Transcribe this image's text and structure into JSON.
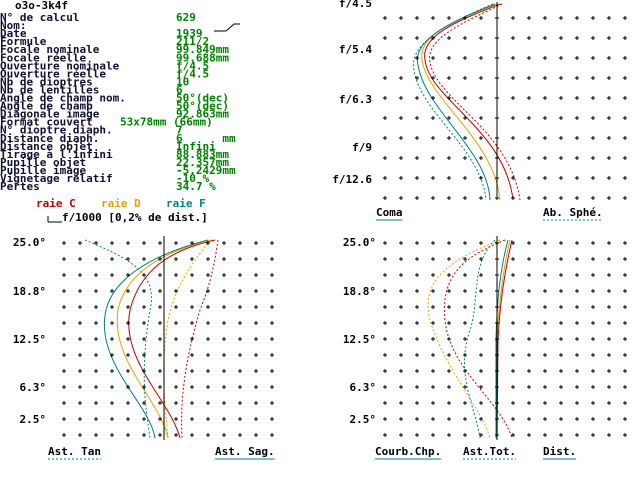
{
  "title": "o3o-3k4f",
  "params_a": [
    {
      "label": "N° de calcul",
      "value": "629"
    },
    {
      "label": "Nom:"
    },
    {
      "label": "Date",
      "value": "1939"
    },
    {
      "label": "Formule",
      "value": "211/2"
    },
    {
      "label": "Focale nominale",
      "value": "99.849mm"
    },
    {
      "label": "Focale réelle",
      "value": "99.688mm"
    },
    {
      "label": "Ouverture nominale",
      "value": "f/4.5"
    },
    {
      "label": "Ouverture réelle",
      "value": "f/4.5"
    },
    {
      "label": "Nb de dioptres",
      "value": "10"
    },
    {
      "label": "Nb de lentilles",
      "value": "6"
    },
    {
      "label": "Angle de champ nom.",
      "value": "50°(dec)"
    },
    {
      "label": "Angle de champ",
      "value": "50°(dec)"
    },
    {
      "label": "Diagonale image",
      "value": "92.863mm"
    }
  ],
  "format": {
    "label": "Format couvert",
    "value": "53x78mm (66mm)"
  },
  "params_b": [
    {
      "label": "N° dioptre diaph.",
      "value": "7"
    },
    {
      "label": "Distance diaph.",
      "value": "6      mm"
    },
    {
      "label": "Distance objet",
      "value": "Infini"
    },
    {
      "label": "Tirage à l'infini",
      "value": "88.883mm"
    },
    {
      "label": "Pupille objet",
      "value": "22.357mm"
    },
    {
      "label": "Pupille image",
      "value": "-5.2429mm"
    },
    {
      "label": "Vignetage relatif",
      "value": "-10 %"
    },
    {
      "label": "Pertes",
      "value": "34.7 %"
    }
  ],
  "legend": [
    "raie C",
    "raie D",
    "raie F"
  ],
  "scale_note": "f/1000 [0,2% de dist.]",
  "plots": [
    {
      "y_labels": [
        "f/4.5",
        "f/5.4",
        "f/6.3",
        "f/9",
        "f/12.6"
      ],
      "x_labels": [
        "Coma",
        "Ab. Sphé."
      ]
    },
    {
      "y_labels": [
        "25.0°",
        "18.8°",
        "12.5°",
        "6.3°",
        "2.5°"
      ],
      "x_labels": [
        "Ast. Tan",
        "Ast. Sag."
      ]
    },
    {
      "y_labels": [
        "25.0°",
        "18.8°",
        "12.5°",
        "6.3°",
        "2.5°"
      ],
      "x_labels": [
        "Courb.Chp.",
        "Ast.Tot.",
        "Dist."
      ]
    }
  ]
}
